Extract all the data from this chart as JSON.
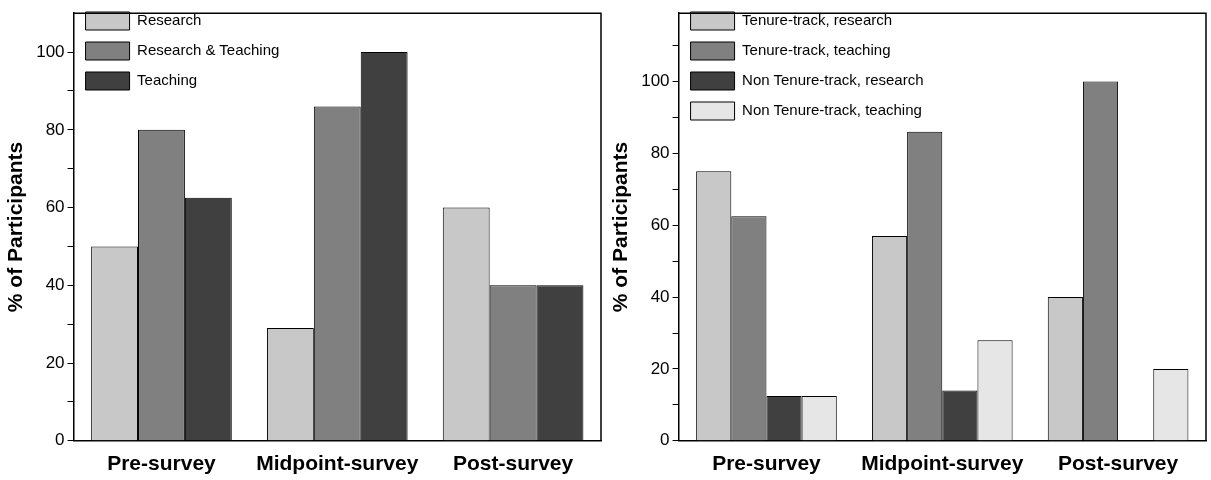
{
  "chart_data": [
    {
      "type": "bar",
      "ylabel": "% of Participants",
      "categories": [
        "Pre-survey",
        "Midpoint-survey",
        "Post-survey"
      ],
      "series": [
        {
          "name": "Research",
          "color": "#c8c8c8",
          "values": [
            50,
            29,
            60
          ]
        },
        {
          "name": "Research & Teaching",
          "color": "#808080",
          "values": [
            80,
            86,
            40
          ]
        },
        {
          "name": "Teaching",
          "color": "#404040",
          "values": [
            62.5,
            100,
            40
          ]
        }
      ],
      "ylim": [
        0,
        110
      ],
      "yticks": [
        0,
        {
          "value": 10,
          "label": null
        },
        20,
        {
          "value": 30,
          "label": null
        },
        40,
        {
          "value": 50,
          "label": null
        },
        60,
        {
          "value": 70,
          "label": null
        },
        80,
        {
          "value": 90,
          "label": null
        },
        100
      ],
      "grid": false,
      "legend": "top left"
    },
    {
      "type": "bar",
      "ylabel": "% of Participants",
      "categories": [
        "Pre-survey",
        "Midpoint-survey",
        "Post-survey"
      ],
      "series": [
        {
          "name": "Tenure-track, research",
          "color": "#c8c8c8",
          "values": [
            75,
            57,
            40
          ]
        },
        {
          "name": "Tenure-track, teaching",
          "color": "#808080",
          "values": [
            62.5,
            86,
            100
          ]
        },
        {
          "name": "Non Tenure-track, research",
          "color": "#404040",
          "values": [
            12.5,
            14,
            0
          ]
        },
        {
          "name": "Non Tenure-track, teaching",
          "color": "#e6e6e6",
          "values": [
            12.5,
            28,
            20
          ]
        }
      ],
      "ylim": [
        0,
        119
      ],
      "yticks": [
        0,
        {
          "value": 10,
          "label": null
        },
        20,
        {
          "value": 30,
          "label": null
        },
        40,
        {
          "value": 50,
          "label": null
        },
        60,
        {
          "value": 70,
          "label": null
        },
        80,
        {
          "value": 90,
          "label": null
        },
        100,
        {
          "value": 110,
          "label": null
        }
      ],
      "grid": false,
      "legend": "top left"
    }
  ]
}
